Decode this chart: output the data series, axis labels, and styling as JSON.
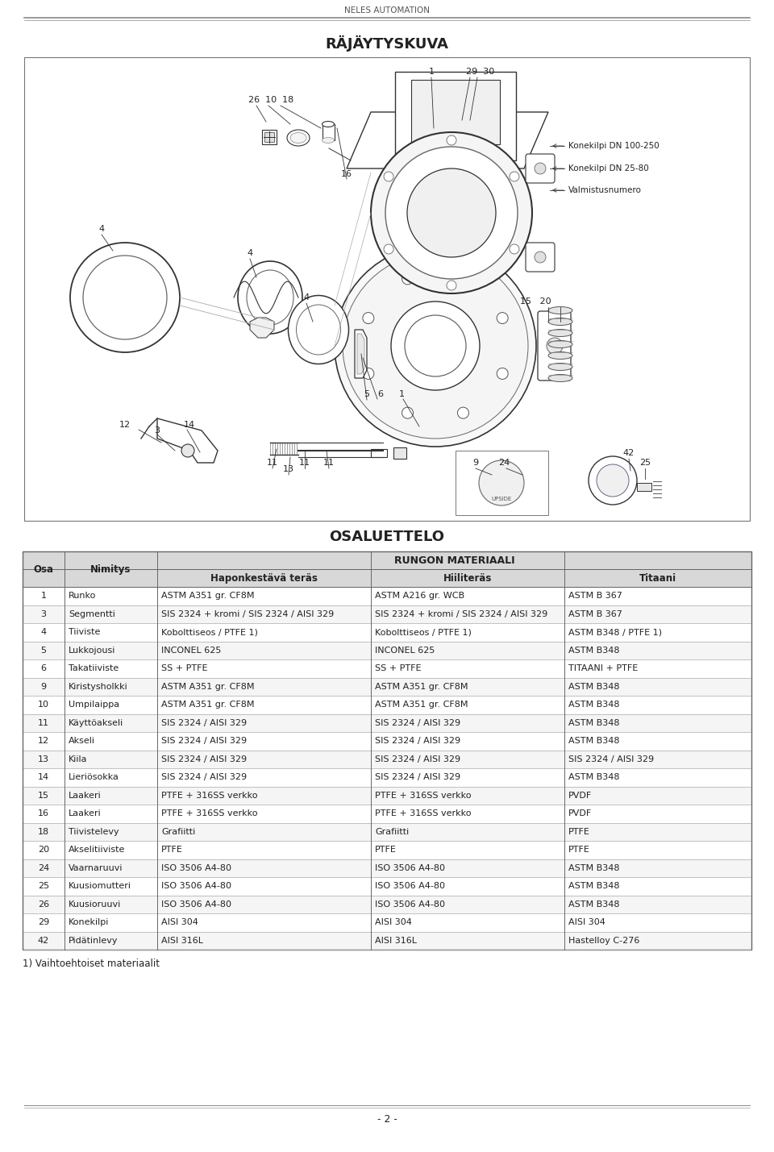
{
  "header_text": "NELES AUTOMATION",
  "title": "RÄJÄYTYSKUVA",
  "section_title": "OSALUETTELO",
  "table_header_main": "RUNGON MATERIAALI",
  "col_headers": [
    "Osa",
    "Nimitys",
    "Haponkestävä teräs",
    "Hiiliteräs",
    "Titaani"
  ],
  "footnote": "1) Vaihtoehtoiset materiaalit",
  "page_number": "- 2 -",
  "rows": [
    [
      "1",
      "Runko",
      "ASTM A351 gr. CF8M",
      "ASTM A216 gr. WCB",
      "ASTM B 367"
    ],
    [
      "3",
      "Segmentti",
      "SIS 2324 + kromi / SIS 2324 / AISI 329",
      "SIS 2324 + kromi / SIS 2324 / AISI 329",
      "ASTM B 367"
    ],
    [
      "4",
      "Tiiviste",
      "Kobolttiseos / PTFE 1)",
      "Kobolttiseos / PTFE 1)",
      "ASTM B348 / PTFE 1)"
    ],
    [
      "5",
      "Lukkojousi",
      "INCONEL 625",
      "INCONEL 625",
      "ASTM B348"
    ],
    [
      "6",
      "Takatiiviste",
      "SS + PTFE",
      "SS + PTFE",
      "TITAANI + PTFE"
    ],
    [
      "9",
      "Kiristysholkki",
      "ASTM A351 gr. CF8M",
      "ASTM A351 gr. CF8M",
      "ASTM B348"
    ],
    [
      "10",
      "Umpilaippa",
      "ASTM A351 gr. CF8M",
      "ASTM A351 gr. CF8M",
      "ASTM B348"
    ],
    [
      "11",
      "Käyttöakseli",
      "SIS 2324 / AISI 329",
      "SIS 2324 / AISI 329",
      "ASTM B348"
    ],
    [
      "12",
      "Akseli",
      "SIS 2324 / AISI 329",
      "SIS 2324 / AISI 329",
      "ASTM B348"
    ],
    [
      "13",
      "Kiila",
      "SIS 2324 / AISI 329",
      "SIS 2324 / AISI 329",
      "SIS 2324 / AISI 329"
    ],
    [
      "14",
      "Lieriösokka",
      "SIS 2324 / AISI 329",
      "SIS 2324 / AISI 329",
      "ASTM B348"
    ],
    [
      "15",
      "Laakeri",
      "PTFE + 316SS verkko",
      "PTFE + 316SS verkko",
      "PVDF"
    ],
    [
      "16",
      "Laakeri",
      "PTFE + 316SS verkko",
      "PTFE + 316SS verkko",
      "PVDF"
    ],
    [
      "18",
      "Tiivistelevy",
      "Grafiitti",
      "Grafiitti",
      "PTFE"
    ],
    [
      "20",
      "Akselitiiviste",
      "PTFE",
      "PTFE",
      "PTFE"
    ],
    [
      "24",
      "Vaarnaruuvi",
      "ISO 3506 A4-80",
      "ISO 3506 A4-80",
      "ASTM B348"
    ],
    [
      "25",
      "Kuusiomutteri",
      "ISO 3506 A4-80",
      "ISO 3506 A4-80",
      "ASTM B348"
    ],
    [
      "26",
      "Kuusioruuvi",
      "ISO 3506 A4-80",
      "ISO 3506 A4-80",
      "ASTM B348"
    ],
    [
      "29",
      "Konekilpi",
      "AISI 304",
      "AISI 304",
      "AISI 304"
    ],
    [
      "42",
      "Pidätinlevy",
      "AISI 316L",
      "AISI 316L",
      "Hastelloy C-276"
    ]
  ],
  "bg_color": "#ffffff",
  "line_color": "#888888",
  "dark_line": "#333333",
  "table_border": "#666666",
  "table_line": "#aaaaaa",
  "header_bg": "#d8d8d8",
  "text_color": "#222222"
}
